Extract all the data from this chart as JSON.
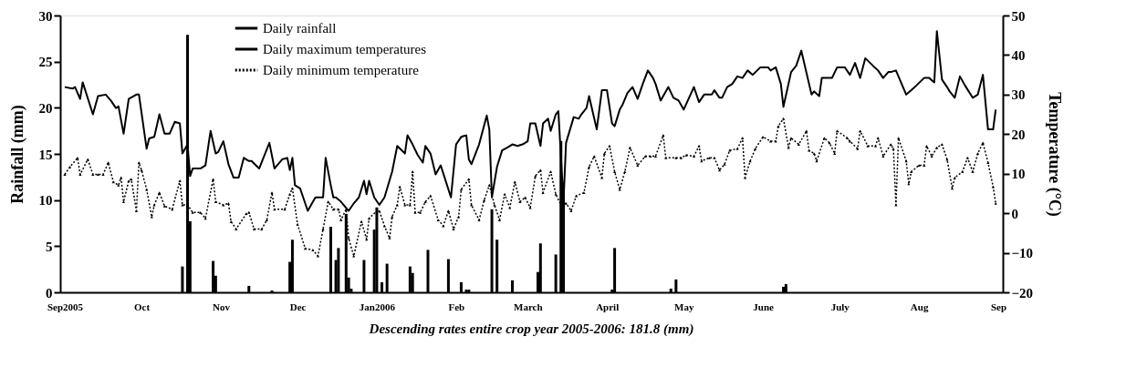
{
  "chart_data": {
    "type": "line",
    "ylabel": "Rainfall (mm)",
    "y2label": "Temperature (°C)",
    "annotations": [
      "Descending rates entire crop year 2005-2006: 181.8 (mm)"
    ],
    "xlim": [
      "2005-09-01",
      "2006-09-01"
    ],
    "xticks": [
      {
        "value": "2005-09-01",
        "label": "Sep2005"
      },
      {
        "value": "2005-10-01",
        "label": "Oct"
      },
      {
        "value": "2005-11-01",
        "label": "Nov"
      },
      {
        "value": "2005-12-01",
        "label": "Dec"
      },
      {
        "value": "2006-01-01",
        "label": "Jan2006"
      },
      {
        "value": "2006-02-01",
        "label": "Feb"
      },
      {
        "value": "2006-03-01",
        "label": "March"
      },
      {
        "value": "2006-04-01",
        "label": "April"
      },
      {
        "value": "2006-05-01",
        "label": "May"
      },
      {
        "value": "2006-06-01",
        "label": "June"
      },
      {
        "value": "2006-07-01",
        "label": "July"
      },
      {
        "value": "2006-08-01",
        "label": "Aug"
      },
      {
        "value": "2006-09-01",
        "label": "Sep"
      }
    ],
    "ylim": [
      0,
      30
    ],
    "yticks": [
      0,
      5,
      10,
      15,
      20,
      25,
      30
    ],
    "y2lim": [
      -20,
      50
    ],
    "y2ticks": [
      -20,
      -10,
      0,
      10,
      20,
      30,
      40,
      50
    ],
    "grid": false,
    "legend": "top",
    "series": [
      {
        "name": "Daily rainfall",
        "type": "bar",
        "color": "#000000",
        "x": [
          "2005-10-17",
          "2005-10-19",
          "2005-10-20",
          "2005-10-29",
          "2005-10-30",
          "2005-11-12",
          "2005-11-21",
          "2005-11-28",
          "2005-11-29",
          "2005-12-14",
          "2005-12-16",
          "2005-12-17",
          "2005-12-20",
          "2005-12-21",
          "2005-12-22",
          "2005-12-27",
          "2005-12-31",
          "2006-01-01",
          "2006-01-03",
          "2006-01-05",
          "2006-01-14",
          "2006-01-15",
          "2006-01-21",
          "2006-01-29",
          "2006-02-03",
          "2006-02-05",
          "2006-02-06",
          "2006-02-15",
          "2006-02-17",
          "2006-02-23",
          "2006-03-05",
          "2006-03-06",
          "2006-03-12",
          "2006-03-14",
          "2006-03-15",
          "2006-04-03",
          "2006-04-04",
          "2006-04-26",
          "2006-04-28",
          "2006-06-09",
          "2006-06-10"
        ],
        "values": [
          2.8,
          27.9,
          7.7,
          3.4,
          1.8,
          0.7,
          0.2,
          3.3,
          5.7,
          7.1,
          3.5,
          4.8,
          8.5,
          1.6,
          0.4,
          3.5,
          6.8,
          9.2,
          1.1,
          3.1,
          2.8,
          2.1,
          4.6,
          3.6,
          1.1,
          0.3,
          0.3,
          9.0,
          5.7,
          1.3,
          2.2,
          5.3,
          4.1,
          16.4,
          11.1,
          0.3,
          4.8,
          0.4,
          1.4,
          0.6,
          0.9
        ]
      },
      {
        "name": "Daily maximum temperatures",
        "axis": "y2",
        "color": "#000000",
        "line_style": "solid",
        "marker": "none",
        "x": [
          "2005-09-01",
          "2005-09-04",
          "2005-09-05",
          "2005-09-07",
          "2005-09-08",
          "2005-09-12",
          "2005-09-14",
          "2005-09-17",
          "2005-09-19",
          "2005-09-21",
          "2005-09-22",
          "2005-09-24",
          "2005-09-26",
          "2005-09-29",
          "2005-09-30",
          "2005-10-03",
          "2005-10-04",
          "2005-10-06",
          "2005-10-08",
          "2005-10-10",
          "2005-10-12",
          "2005-10-14",
          "2005-10-16",
          "2005-10-17",
          "2005-10-19",
          "2005-10-20",
          "2005-10-21",
          "2005-10-23",
          "2005-10-24",
          "2005-10-26",
          "2005-10-28",
          "2005-10-30",
          "2005-10-31",
          "2005-11-02",
          "2005-11-04",
          "2005-11-06",
          "2005-11-08",
          "2005-11-10",
          "2005-11-12",
          "2005-11-13",
          "2005-11-16",
          "2005-11-20",
          "2005-11-22",
          "2005-11-23",
          "2005-11-25",
          "2005-11-27",
          "2005-11-28",
          "2005-11-29",
          "2005-11-30",
          "2005-12-02",
          "2005-12-05",
          "2005-12-08",
          "2005-12-11",
          "2005-12-12",
          "2005-12-14",
          "2005-12-15",
          "2005-12-16",
          "2005-12-18",
          "2005-12-21",
          "2005-12-23",
          "2005-12-25",
          "2005-12-27",
          "2005-12-28",
          "2005-12-29",
          "2005-12-31",
          "2006-01-02",
          "2006-01-04",
          "2006-01-07",
          "2006-01-09",
          "2006-01-12",
          "2006-01-13",
          "2006-01-15",
          "2006-01-17",
          "2006-01-19",
          "2006-01-20",
          "2006-01-22",
          "2006-01-24",
          "2006-01-26",
          "2006-01-30",
          "2006-02-01",
          "2006-02-03",
          "2006-02-05",
          "2006-02-06",
          "2006-02-07",
          "2006-02-10",
          "2006-02-13",
          "2006-02-14",
          "2006-02-15",
          "2006-02-17",
          "2006-02-19",
          "2006-02-21",
          "2006-02-23",
          "2006-02-25",
          "2006-02-27",
          "2006-03-01",
          "2006-03-02",
          "2006-03-04",
          "2006-03-06",
          "2006-03-07",
          "2006-03-09",
          "2006-03-10",
          "2006-03-12",
          "2006-03-13",
          "2006-03-15",
          "2006-03-16",
          "2006-03-19",
          "2006-03-21",
          "2006-03-22",
          "2006-03-24",
          "2006-03-25",
          "2006-03-28",
          "2006-03-30",
          "2006-04-01",
          "2006-04-03",
          "2006-04-04",
          "2006-04-06",
          "2006-04-07",
          "2006-04-09",
          "2006-04-11",
          "2006-04-13",
          "2006-04-15",
          "2006-04-17",
          "2006-04-19",
          "2006-04-20",
          "2006-04-22",
          "2006-04-23",
          "2006-04-25",
          "2006-04-27",
          "2006-04-29",
          "2006-05-01",
          "2006-05-05",
          "2006-05-07",
          "2006-05-09",
          "2006-05-12",
          "2006-05-13",
          "2006-05-15",
          "2006-05-16",
          "2006-05-18",
          "2006-05-20",
          "2006-05-22",
          "2006-05-24",
          "2006-05-26",
          "2006-05-28",
          "2006-05-31",
          "2006-06-03",
          "2006-06-04",
          "2006-06-06",
          "2006-06-08",
          "2006-06-09",
          "2006-06-12",
          "2006-06-14",
          "2006-06-16",
          "2006-06-20",
          "2006-06-21",
          "2006-06-23",
          "2006-06-24",
          "2006-06-28",
          "2006-06-30",
          "2006-07-03",
          "2006-07-05",
          "2006-07-07",
          "2006-07-09",
          "2006-07-11",
          "2006-07-14",
          "2006-07-16",
          "2006-07-18",
          "2006-07-20",
          "2006-07-21",
          "2006-07-23",
          "2006-07-27",
          "2006-07-29",
          "2006-07-31",
          "2006-08-03",
          "2006-08-05",
          "2006-08-07",
          "2006-08-08",
          "2006-08-10",
          "2006-08-12",
          "2006-08-13",
          "2006-08-15",
          "2006-08-17",
          "2006-08-19",
          "2006-08-22",
          "2006-08-24",
          "2006-08-26",
          "2006-08-28",
          "2006-08-30",
          "2006-08-31"
        ],
        "values": [
          31.9,
          31.5,
          31.9,
          28.9,
          33.1,
          25.0,
          29.6,
          30.0,
          28.5,
          26.6,
          27.0,
          20.1,
          28.9,
          30.0,
          30.0,
          16.3,
          18.9,
          19.3,
          25.0,
          20.1,
          20.1,
          23.1,
          22.7,
          15.1,
          17.4,
          9.4,
          11.3,
          11.3,
          11.3,
          12.1,
          20.8,
          15.1,
          15.5,
          18.2,
          12.4,
          9.0,
          9.0,
          14.0,
          13.2,
          13.2,
          11.3,
          17.8,
          11.3,
          12.1,
          13.6,
          14.0,
          10.9,
          14.0,
          7.1,
          6.3,
          0.6,
          4.0,
          4.0,
          14.0,
          7.1,
          4.0,
          4.0,
          2.9,
          0.6,
          2.5,
          4.0,
          8.2,
          4.8,
          8.2,
          4.0,
          2.1,
          4.0,
          10.5,
          17.0,
          15.1,
          19.7,
          17.4,
          14.7,
          12.8,
          17.0,
          15.1,
          9.8,
          12.1,
          4.0,
          17.4,
          19.3,
          19.7,
          13.6,
          12.4,
          17.4,
          24.7,
          21.2,
          4.0,
          11.7,
          15.9,
          16.6,
          17.4,
          17.0,
          17.4,
          18.2,
          22.7,
          22.7,
          17.0,
          22.7,
          23.9,
          20.8,
          25.0,
          25.8,
          2.9,
          17.8,
          24.3,
          23.9,
          25.0,
          26.6,
          29.6,
          21.2,
          31.1,
          31.1,
          22.7,
          22.0,
          26.2,
          27.3,
          30.4,
          31.9,
          28.9,
          32.7,
          36.1,
          34.2,
          32.7,
          28.5,
          29.6,
          31.9,
          29.2,
          28.5,
          26.2,
          31.9,
          28.1,
          30.0,
          30.0,
          31.1,
          29.2,
          29.2,
          31.9,
          32.7,
          34.6,
          34.2,
          36.1,
          35.0,
          36.9,
          36.9,
          36.1,
          36.9,
          32.7,
          26.9,
          35.7,
          37.3,
          41.1,
          30.0,
          30.8,
          29.6,
          34.2,
          34.2,
          36.9,
          36.9,
          35.0,
          38.0,
          34.2,
          39.2,
          37.3,
          36.1,
          34.2,
          35.7,
          35.7,
          36.1,
          30.0,
          31.1,
          32.3,
          34.2,
          34.2,
          33.1,
          46.0,
          33.8,
          31.9,
          30.8,
          29.2,
          34.6,
          32.3,
          29.2,
          30.0,
          35.0,
          21.2,
          21.2,
          26.2
        ]
      },
      {
        "name": "Daily minimum temperature",
        "axis": "y2",
        "color": "#000000",
        "line_style": "dotted",
        "marker": "triangle",
        "x": [
          "2005-09-01",
          "2005-09-03",
          "2005-09-06",
          "2005-09-07",
          "2005-09-10",
          "2005-09-12",
          "2005-09-14",
          "2005-09-16",
          "2005-09-18",
          "2005-09-20",
          "2005-09-22",
          "2005-09-23",
          "2005-09-24",
          "2005-09-26",
          "2005-09-27",
          "2005-09-29",
          "2005-09-30",
          "2005-10-01",
          "2005-10-03",
          "2005-10-05",
          "2005-10-06",
          "2005-10-08",
          "2005-10-10",
          "2005-10-13",
          "2005-10-16",
          "2005-10-17",
          "2005-10-19",
          "2005-10-21",
          "2005-10-24",
          "2005-10-26",
          "2005-10-29",
          "2005-10-30",
          "2005-11-02",
          "2005-11-04",
          "2005-11-05",
          "2005-11-07",
          "2005-11-11",
          "2005-11-12",
          "2005-11-14",
          "2005-11-17",
          "2005-11-19",
          "2005-11-21",
          "2005-11-22",
          "2005-11-26",
          "2005-11-28",
          "2005-11-29",
          "2005-12-01",
          "2005-12-04",
          "2005-12-07",
          "2005-12-09",
          "2005-12-11",
          "2005-12-13",
          "2005-12-15",
          "2005-12-17",
          "2005-12-18",
          "2005-12-20",
          "2005-12-21",
          "2005-12-23",
          "2005-12-26",
          "2005-12-28",
          "2005-12-29",
          "2006-01-01",
          "2006-01-02",
          "2006-01-04",
          "2006-01-06",
          "2006-01-07",
          "2006-01-09",
          "2006-01-10",
          "2006-01-12",
          "2006-01-14",
          "2006-01-15",
          "2006-01-16",
          "2006-01-18",
          "2006-01-20",
          "2006-01-22",
          "2006-01-25",
          "2006-01-27",
          "2006-01-29",
          "2006-01-31",
          "2006-02-02",
          "2006-02-03",
          "2006-02-06",
          "2006-02-07",
          "2006-02-10",
          "2006-02-12",
          "2006-02-14",
          "2006-02-16",
          "2006-02-18",
          "2006-02-20",
          "2006-02-22",
          "2006-02-24",
          "2006-02-26",
          "2006-02-28",
          "2006-03-02",
          "2006-03-04",
          "2006-03-06",
          "2006-03-07",
          "2006-03-10",
          "2006-03-12",
          "2006-03-14",
          "2006-03-16",
          "2006-03-18",
          "2006-03-20",
          "2006-03-23",
          "2006-03-25",
          "2006-03-27",
          "2006-03-30",
          "2006-03-31",
          "2006-04-02",
          "2006-04-04",
          "2006-04-06",
          "2006-04-08",
          "2006-04-10",
          "2006-04-13",
          "2006-04-16",
          "2006-04-18",
          "2006-04-20",
          "2006-04-23",
          "2006-04-24",
          "2006-04-28",
          "2006-04-30",
          "2006-05-02",
          "2006-05-05",
          "2006-05-07",
          "2006-05-08",
          "2006-05-11",
          "2006-05-13",
          "2006-05-15",
          "2006-05-17",
          "2006-05-19",
          "2006-05-22",
          "2006-05-24",
          "2006-05-25",
          "2006-05-27",
          "2006-05-29",
          "2006-06-01",
          "2006-06-04",
          "2006-06-06",
          "2006-06-07",
          "2006-06-09",
          "2006-06-11",
          "2006-06-12",
          "2006-06-15",
          "2006-06-18",
          "2006-06-19",
          "2006-06-21",
          "2006-06-22",
          "2006-06-25",
          "2006-06-27",
          "2006-06-29",
          "2006-06-30",
          "2006-07-04",
          "2006-07-05",
          "2006-07-08",
          "2006-07-09",
          "2006-07-12",
          "2006-07-15",
          "2006-07-16",
          "2006-07-18",
          "2006-07-21",
          "2006-07-22",
          "2006-07-23",
          "2006-07-24",
          "2006-07-27",
          "2006-07-28",
          "2006-07-29",
          "2006-08-01",
          "2006-08-03",
          "2006-08-04",
          "2006-08-06",
          "2006-08-08",
          "2006-08-10",
          "2006-08-12",
          "2006-08-14",
          "2006-08-15",
          "2006-08-18",
          "2006-08-20",
          "2006-08-22",
          "2006-08-24",
          "2006-08-26",
          "2006-08-28",
          "2006-08-30",
          "2006-08-31"
        ],
        "values": [
          9.8,
          11.7,
          14.0,
          9.8,
          13.6,
          9.8,
          9.8,
          9.8,
          12.8,
          7.9,
          7.1,
          9.0,
          2.9,
          8.2,
          8.6,
          0.6,
          12.8,
          10.9,
          6.0,
          -0.9,
          2.1,
          5.2,
          1.8,
          1.0,
          8.2,
          2.1,
          2.1,
          0.2,
          0.2,
          -1.3,
          8.6,
          2.9,
          2.1,
          2.5,
          -2.1,
          -4.0,
          -0.1,
          0.2,
          -4.0,
          -4.0,
          -1.7,
          5.2,
          1.0,
          1.0,
          4.8,
          6.3,
          -2.8,
          -8.9,
          -9.3,
          -10.8,
          -4.0,
          2.9,
          1.0,
          1.0,
          -1.7,
          1.0,
          -6.3,
          -10.8,
          -2.1,
          -6.6,
          -1.3,
          0.6,
          0.6,
          -3.2,
          -6.3,
          -0.9,
          2.1,
          6.7,
          2.1,
          2.1,
          10.5,
          0.2,
          0.2,
          2.9,
          4.4,
          -1.7,
          -3.2,
          0.6,
          -4.0,
          -0.9,
          6.0,
          8.6,
          2.1,
          -1.7,
          3.3,
          7.1,
          2.1,
          -1.7,
          4.8,
          1.4,
          7.9,
          2.9,
          4.0,
          1.4,
          9.4,
          10.9,
          5.2,
          10.5,
          4.8,
          2.1,
          2.5,
          0.6,
          4.4,
          5.2,
          11.7,
          14.4,
          9.0,
          15.1,
          17.0,
          10.5,
          6.0,
          10.5,
          16.6,
          12.1,
          14.4,
          14.4,
          14.4,
          19.7,
          14.0,
          14.0,
          14.0,
          14.7,
          14.4,
          17.0,
          13.2,
          14.0,
          14.0,
          10.9,
          12.4,
          15.9,
          16.3,
          19.0,
          9.0,
          13.2,
          16.3,
          19.3,
          18.2,
          18.2,
          22.0,
          23.9,
          16.6,
          19.0,
          17.4,
          20.8,
          15.9,
          15.1,
          13.2,
          19.0,
          17.8,
          15.1,
          20.8,
          19.0,
          18.2,
          16.3,
          20.8,
          17.0,
          17.0,
          19.0,
          14.4,
          17.4,
          16.3,
          2.1,
          19.0,
          13.2,
          7.4,
          10.5,
          12.1,
          12.1,
          17.0,
          14.4,
          16.6,
          17.4,
          13.6,
          6.3,
          9.0,
          10.5,
          14.0,
          10.5,
          15.1,
          17.8,
          12.8,
          6.7,
          2.5
        ]
      }
    ]
  }
}
